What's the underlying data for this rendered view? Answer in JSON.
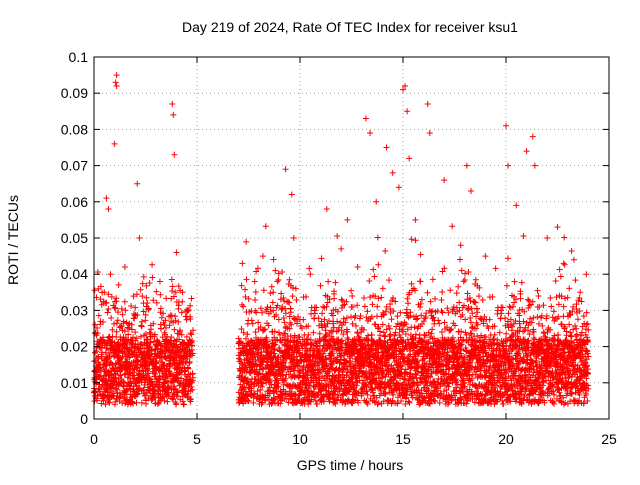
{
  "chart_data": {
    "type": "scatter",
    "title": "Day 219 of 2024, Rate Of TEC Index for receiver ksu1",
    "xlabel": "GPS time / hours",
    "ylabel": "ROTI / TECUs",
    "xlim": [
      0,
      25
    ],
    "ylim": [
      0,
      0.1
    ],
    "x_ticks": [
      "0",
      "5",
      "10",
      "15",
      "20",
      "25"
    ],
    "y_ticks": [
      "0",
      "0.01",
      "0.02",
      "0.03",
      "0.04",
      "0.05",
      "0.06",
      "0.07",
      "0.08",
      "0.09",
      "0.1"
    ],
    "grid": true,
    "legend": "none",
    "marker": "plus",
    "color": "#ff0000",
    "data_gap_hours": [
      4.8,
      7.0
    ],
    "series": [
      {
        "x": [
          0.1,
          0.3,
          0.5,
          0.6,
          0.7,
          0.8,
          1.0,
          1.05,
          1.1,
          1.1,
          1.5,
          2.1,
          2.2,
          2.4,
          3.2,
          3.8,
          3.85,
          3.9,
          4.0,
          4.3,
          7.2,
          7.8,
          8.2,
          8.7,
          9.3,
          9.6,
          9.7,
          9.8,
          10.5,
          11.3,
          12.0,
          12.3,
          12.8,
          13.2,
          13.4,
          13.7,
          14.2,
          14.5,
          14.8,
          15.0,
          15.1,
          15.2,
          15.3,
          15.6,
          16.2,
          16.3,
          17.0,
          17.8,
          18.1,
          18.3,
          19.0,
          19.6,
          20.0,
          20.1,
          20.5,
          21.0,
          21.3,
          21.4,
          22.0,
          22.5,
          22.8,
          23.3,
          23.6,
          23.9
        ],
        "y": [
          0.013,
          0.022,
          0.035,
          0.061,
          0.058,
          0.04,
          0.076,
          0.093,
          0.095,
          0.092,
          0.042,
          0.065,
          0.05,
          0.032,
          0.038,
          0.087,
          0.084,
          0.073,
          0.046,
          0.035,
          0.043,
          0.038,
          0.045,
          0.035,
          0.069,
          0.062,
          0.05,
          0.036,
          0.04,
          0.058,
          0.047,
          0.055,
          0.042,
          0.083,
          0.079,
          0.06,
          0.075,
          0.068,
          0.064,
          0.091,
          0.092,
          0.085,
          0.072,
          0.055,
          0.087,
          0.079,
          0.066,
          0.048,
          0.07,
          0.063,
          0.045,
          0.03,
          0.081,
          0.07,
          0.059,
          0.074,
          0.078,
          0.07,
          0.05,
          0.053,
          0.043,
          0.044,
          0.035,
          0.04
        ]
      }
    ]
  }
}
